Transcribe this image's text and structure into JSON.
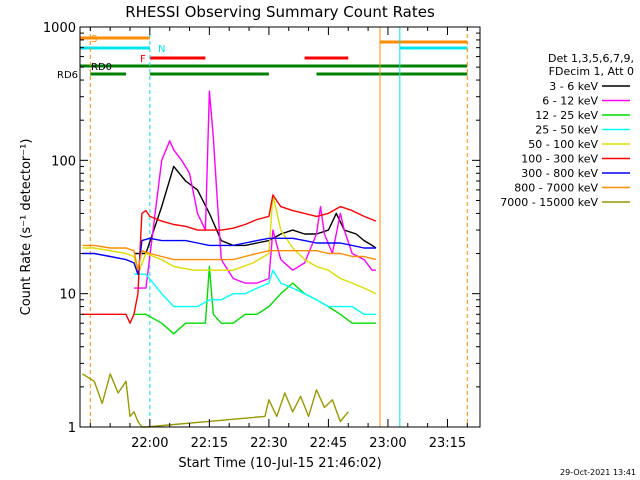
{
  "chart_data": {
    "type": "line",
    "title": "RHESSI Observing Summary Count Rates",
    "xlabel": "Start Time (10-Jul-15 21:46:02)",
    "ylabel": "Count Rate (s⁻¹ detector⁻¹)",
    "yscale": "log",
    "ylim": [
      1,
      1000
    ],
    "xlim_minutes": [
      -3.6,
      97.2
    ],
    "x_tick_labels": [
      "22:00",
      "22:15",
      "22:30",
      "22:45",
      "23:00",
      "23:15"
    ],
    "x_tick_minutes": [
      14,
      29,
      44,
      59,
      74,
      89
    ],
    "y_tick_labels": [
      "1",
      "10",
      "100",
      "1000"
    ],
    "y_tick_values": [
      1,
      10,
      100,
      1000
    ],
    "legend_header": [
      "Det 1,3,5,6,7,9,",
      "FDecim 1, Att 0"
    ],
    "legend_position": "right",
    "timestamp": "29-Oct-2021 13:41",
    "flag_labels": {
      "S": "S",
      "N": "N",
      "F": "F",
      "RD0": "RD0",
      "RD6": "RD6"
    },
    "flags": {
      "saa": [
        [
          -3.6,
          14
        ]
      ],
      "night": [
        [
          -3.6,
          14
        ],
        [
          77,
          94
        ]
      ],
      "flare": [
        [
          14,
          28
        ],
        [
          53,
          64
        ]
      ],
      "rd0": [
        [
          -3.6,
          94
        ]
      ],
      "rd6": [
        [
          -1,
          8
        ],
        [
          14,
          44
        ],
        [
          56,
          94
        ]
      ],
      "attenuator": [
        [
          72,
          94
        ]
      ]
    },
    "vlines": [
      {
        "x": -1,
        "color": "#ff8c00",
        "style": "dashed"
      },
      {
        "x": 14,
        "color": "#00e5ee",
        "style": "dashed"
      },
      {
        "x": 72,
        "color": "#ff8c00",
        "style": "solid"
      },
      {
        "x": 77,
        "color": "#00e5ee",
        "style": "solid"
      },
      {
        "x": 94,
        "color": "#ff8c00",
        "style": "dashed"
      }
    ],
    "series": [
      {
        "name": "3 - 6 keV",
        "color": "#000000",
        "x": [
          10,
          13,
          17,
          20,
          23,
          26,
          29,
          32,
          35,
          38,
          41,
          44,
          47,
          50,
          53,
          56,
          59,
          61,
          63,
          66,
          68,
          70,
          71
        ],
        "y": [
          20,
          20,
          45,
          90,
          70,
          60,
          40,
          25,
          23,
          23,
          24,
          25,
          28,
          30,
          28,
          28,
          30,
          40,
          30,
          28,
          25,
          23,
          22
        ]
      },
      {
        "name": "6 - 12 keV",
        "color": "#ff00ff",
        "x": [
          10,
          13,
          17,
          19,
          20,
          22,
          24,
          26,
          28,
          29,
          30,
          31,
          32,
          35,
          38,
          41,
          44,
          45,
          47,
          50,
          53,
          56,
          57,
          58,
          60,
          62,
          63,
          65,
          68,
          70,
          71
        ],
        "y": [
          11,
          11,
          100,
          140,
          120,
          100,
          80,
          40,
          30,
          330,
          150,
          50,
          18,
          13,
          12,
          12,
          13,
          30,
          18,
          15,
          17,
          28,
          45,
          28,
          20,
          40,
          30,
          20,
          18,
          15,
          15
        ]
      },
      {
        "name": "12 - 25 keV",
        "color": "#00dd00",
        "x": [
          10,
          13,
          17,
          20,
          23,
          26,
          28,
          29,
          30,
          32,
          35,
          38,
          41,
          44,
          47,
          50,
          53,
          56,
          59,
          62,
          65,
          68,
          71
        ],
        "y": [
          7,
          7,
          6,
          5,
          6,
          6,
          6,
          16,
          7,
          6,
          6,
          7,
          7,
          8,
          10,
          12,
          10,
          9,
          8,
          7,
          6,
          6,
          6
        ]
      },
      {
        "name": "25 - 50 keV",
        "color": "#00ffff",
        "x": [
          10,
          13,
          17,
          20,
          23,
          26,
          29,
          32,
          35,
          38,
          41,
          44,
          45,
          47,
          50,
          53,
          56,
          59,
          62,
          65,
          68,
          71
        ],
        "y": [
          14,
          14,
          10,
          8,
          8,
          8,
          9,
          9,
          10,
          10,
          11,
          12,
          15,
          12,
          11,
          10,
          9,
          8,
          8,
          8,
          7,
          7
        ]
      },
      {
        "name": "50 - 100 keV",
        "color": "#dddd00",
        "x": [
          -3,
          0,
          4,
          8,
          10,
          11,
          13,
          17,
          20,
          25,
          30,
          35,
          40,
          44,
          45,
          47,
          50,
          53,
          56,
          59,
          62,
          65,
          68,
          71
        ],
        "y": [
          22,
          22,
          21,
          20,
          19,
          14,
          20,
          18,
          16,
          15,
          15,
          15,
          17,
          20,
          55,
          30,
          22,
          18,
          16,
          15,
          13,
          12,
          11,
          10
        ]
      },
      {
        "name": "100 - 300 keV",
        "color": "#ff0000",
        "x": [
          -3,
          0,
          4,
          8,
          9,
          10,
          11,
          12,
          13,
          14,
          17,
          20,
          23,
          26,
          29,
          32,
          35,
          38,
          41,
          44,
          45,
          47,
          50,
          53,
          56,
          59,
          62,
          65,
          68,
          71
        ],
        "y": [
          7,
          7,
          7,
          7,
          6,
          7,
          10,
          40,
          42,
          38,
          35,
          33,
          32,
          30,
          30,
          30,
          31,
          33,
          36,
          38,
          55,
          45,
          42,
          40,
          38,
          40,
          45,
          42,
          38,
          35
        ]
      },
      {
        "name": "300 - 800 keV",
        "color": "#0000ff",
        "x": [
          -3,
          0,
          4,
          8,
          10,
          11,
          12,
          14,
          17,
          20,
          23,
          26,
          29,
          32,
          35,
          38,
          41,
          44,
          47,
          50,
          53,
          56,
          59,
          62,
          65,
          68,
          71
        ],
        "y": [
          20,
          20,
          19,
          18,
          17,
          14,
          25,
          26,
          25,
          25,
          25,
          24,
          23,
          23,
          23,
          24,
          25,
          26,
          26,
          26,
          25,
          24,
          24,
          24,
          23,
          22,
          22
        ]
      },
      {
        "name": "800 - 7000 keV",
        "color": "#ff8c00",
        "x": [
          -3,
          0,
          4,
          8,
          10,
          11,
          12,
          14,
          17,
          20,
          23,
          26,
          29,
          32,
          35,
          38,
          41,
          44,
          47,
          50,
          53,
          56,
          59,
          62,
          65,
          68,
          71
        ],
        "y": [
          23,
          23,
          22,
          22,
          21,
          15,
          21,
          20,
          19,
          18,
          18,
          18,
          18,
          18,
          18,
          19,
          20,
          21,
          21,
          21,
          21,
          21,
          20,
          20,
          19,
          19,
          18
        ]
      },
      {
        "name": "7000 - 15000 keV",
        "color": "#999900",
        "x": [
          -3,
          0,
          2,
          4,
          6,
          8,
          9,
          10,
          11,
          12,
          13,
          43,
          44,
          46,
          48,
          50,
          52,
          54,
          56,
          58,
          60,
          62,
          64
        ],
        "y": [
          2.5,
          2.2,
          1.5,
          2.5,
          1.8,
          2.2,
          1.2,
          1.3,
          1.1,
          1.0,
          1.0,
          1.2,
          1.6,
          1.2,
          1.8,
          1.3,
          1.7,
          1.2,
          1.9,
          1.4,
          1.6,
          1.1,
          1.3
        ]
      }
    ]
  }
}
